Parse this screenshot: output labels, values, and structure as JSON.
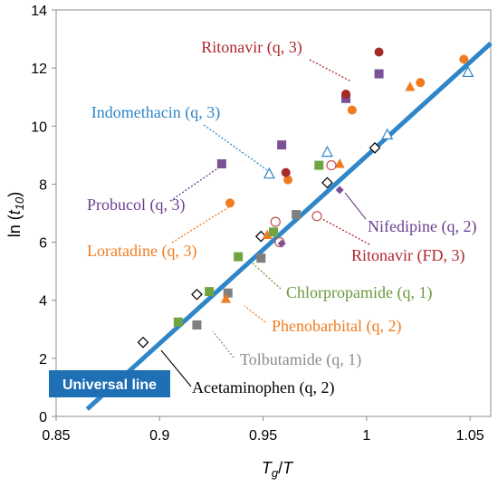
{
  "chart_data": {
    "type": "scatter",
    "xlabel": "Tg/T",
    "ylabel": "ln (t10)",
    "xlim": [
      0.85,
      1.06
    ],
    "ylim": [
      0,
      14
    ],
    "xticks": [
      "0.85",
      "0.9",
      "0.95",
      "1",
      "1.05"
    ],
    "yticks": [
      "0",
      "2",
      "4",
      "6",
      "8",
      "10",
      "12",
      "14"
    ],
    "grid": false,
    "fit_line": {
      "label": "Universal line",
      "color": "#2E86C8",
      "x": [
        0.865,
        1.06
      ],
      "y": [
        0.25,
        12.85
      ]
    },
    "series": [
      {
        "name": "Acetaminophen (q, 2)",
        "marker": "diamond-open",
        "color": "#000000",
        "points": [
          [
            0.892,
            2.55
          ],
          [
            0.918,
            4.2
          ],
          [
            0.949,
            6.2
          ],
          [
            0.981,
            8.05
          ],
          [
            1.004,
            9.25
          ]
        ]
      },
      {
        "name": "Tolbutamide (q, 1)",
        "marker": "square",
        "color": "#7F7F7F",
        "points": [
          [
            0.918,
            3.15
          ],
          [
            0.933,
            4.25
          ],
          [
            0.949,
            5.45
          ],
          [
            0.966,
            6.95
          ]
        ]
      },
      {
        "name": "Phenobarbital (q, 2)",
        "marker": "triangle",
        "color": "#F07C21",
        "points": [
          [
            0.932,
            4.05
          ],
          [
            0.952,
            6.25
          ],
          [
            0.987,
            8.7
          ],
          [
            1.021,
            11.35
          ]
        ]
      },
      {
        "name": "Chlorpropamide (q, 1)",
        "marker": "square",
        "color": "#70A442",
        "points": [
          [
            0.909,
            3.25
          ],
          [
            0.924,
            4.3
          ],
          [
            0.938,
            5.5
          ],
          [
            0.955,
            6.35
          ],
          [
            0.977,
            8.65
          ]
        ]
      },
      {
        "name": "Loratadine (q, 3)",
        "marker": "circle",
        "color": "#F07C21",
        "points": [
          [
            0.934,
            7.35
          ],
          [
            0.962,
            8.15
          ],
          [
            0.993,
            10.55
          ],
          [
            1.026,
            11.5
          ],
          [
            1.047,
            12.3
          ]
        ]
      },
      {
        "name": "Ritonavir (FD, 3)",
        "marker": "circle-open",
        "color": "#C0504D",
        "points": [
          [
            0.956,
            6.7
          ],
          [
            0.958,
            6.0
          ],
          [
            0.976,
            6.9
          ],
          [
            0.983,
            8.65
          ]
        ]
      },
      {
        "name": "Nifedipine (q, 2)",
        "marker": "diamond",
        "color": "#7B5196",
        "points": [
          [
            0.959,
            5.95
          ],
          [
            0.987,
            7.8
          ]
        ]
      },
      {
        "name": "Probucol (q, 3)",
        "marker": "square",
        "color": "#7B5196",
        "points": [
          [
            0.93,
            8.7
          ],
          [
            0.959,
            9.35
          ],
          [
            0.99,
            10.95
          ],
          [
            1.006,
            11.8
          ]
        ]
      },
      {
        "name": "Indomethacin (q, 3)",
        "marker": "triangle-open",
        "color": "#2E86C8",
        "points": [
          [
            0.953,
            8.35
          ],
          [
            0.981,
            9.1
          ],
          [
            1.01,
            9.7
          ],
          [
            1.049,
            11.85
          ]
        ]
      },
      {
        "name": "Ritonavir (q, 3)",
        "marker": "circle",
        "color": "#A52A2A",
        "points": [
          [
            0.961,
            8.4
          ],
          [
            0.99,
            11.1
          ],
          [
            1.006,
            12.55
          ]
        ]
      }
    ],
    "annotations": [
      {
        "text": "Ritonavir (q, 3)",
        "color": "#B0282E",
        "series": 9
      },
      {
        "text": "Indomethacin (q, 3)",
        "color": "#2E86C8",
        "series": 8
      },
      {
        "text": "Probucol (q, 3)",
        "color": "#6B3F8E",
        "series": 7
      },
      {
        "text": "Nifedipine (q, 2)",
        "color": "#6B3F8E",
        "series": 6
      },
      {
        "text": "Loratadine (q, 3)",
        "color": "#F07C21",
        "series": 4
      },
      {
        "text": "Ritonavir (FD, 3)",
        "color": "#B0282E",
        "series": 5
      },
      {
        "text": "Chlorpropamide (q, 1)",
        "color": "#6B9A3D",
        "series": 3
      },
      {
        "text": "Phenobarbital (q, 2)",
        "color": "#F07C21",
        "series": 2
      },
      {
        "text": "Tolbutamide (q, 1)",
        "color": "#8C8C8C",
        "series": 1
      },
      {
        "text": "Acetaminophen (q, 2)",
        "color": "#000000",
        "series": 0
      }
    ]
  }
}
